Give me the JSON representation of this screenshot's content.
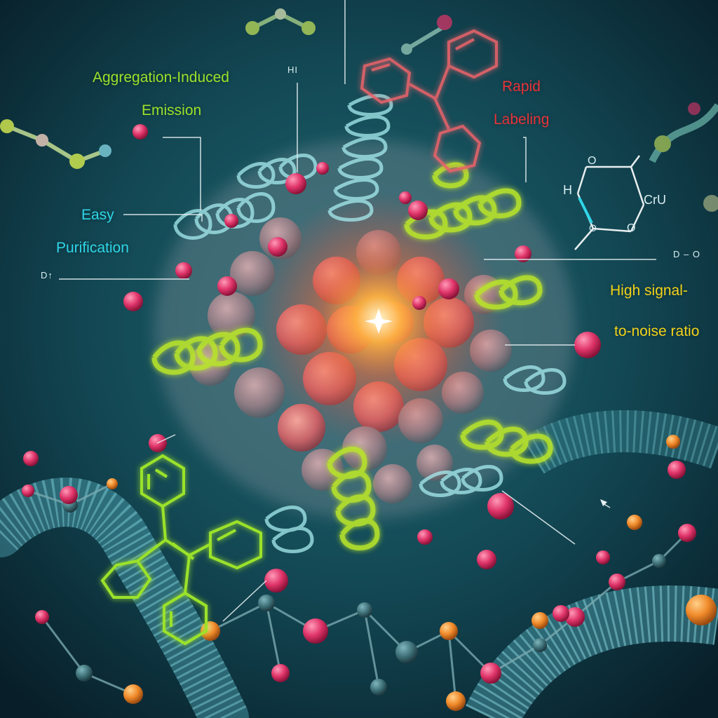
{
  "labels": {
    "aie_line1": "Aggregation-Induced",
    "aie_line2": "Emission",
    "easy_line1": "Easy",
    "easy_line2": "Purification",
    "rapid_line1": "Rapid",
    "rapid_line2": "Labeling",
    "snr_line1": "High signal-",
    "snr_line2": "to-noise ratio",
    "hi_tag": "HI",
    "d_tag_left": "D↑",
    "d_tag_right": "D – O",
    "chem_h": "H",
    "chem_o_top": "O",
    "chem_o_bottom": "O",
    "chem_o_right": "O",
    "chem_cru": "CrU"
  },
  "colors": {
    "aie_green": "#9be22a",
    "cyan_label": "#2fd6e8",
    "red_label": "#e8323a",
    "yellow_label": "#f2d21a",
    "background_deep": "#0b2f3a",
    "glow_core": "#ff9a2a",
    "helix_green": "#b9e52c",
    "helix_cyan": "#8fe0e6",
    "bead_pink": "#e0356a",
    "bead_orange": "#f08a2a"
  }
}
